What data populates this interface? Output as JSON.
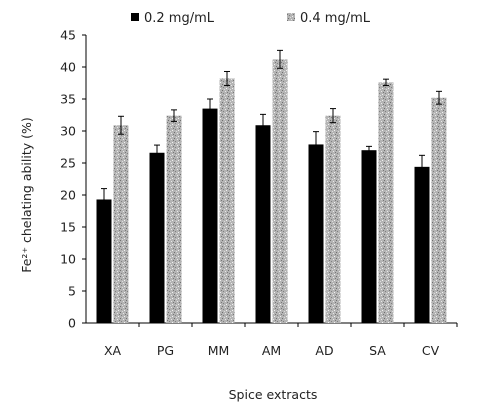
{
  "chart_data": {
    "type": "bar",
    "categories": [
      "XA",
      "PG",
      "MM",
      "AM",
      "AD",
      "SA",
      "CV"
    ],
    "series": [
      {
        "name": "0.2 mg/mL",
        "values": [
          19.3,
          26.6,
          33.5,
          30.9,
          27.9,
          27.0,
          24.4
        ],
        "errors": [
          1.7,
          1.2,
          1.5,
          1.7,
          2.0,
          0.6,
          1.8
        ],
        "color": "#000000"
      },
      {
        "name": "0.4 mg/mL",
        "values": [
          30.9,
          32.4,
          38.2,
          41.2,
          32.4,
          37.6,
          35.2
        ],
        "errors": [
          1.4,
          0.9,
          1.1,
          1.4,
          1.1,
          0.5,
          1.0
        ],
        "color": "#b0b0b0"
      }
    ],
    "xlabel": "Spice extracts",
    "ylabel": "Fe²⁺ chelating ability (%)",
    "ylim": [
      0,
      45
    ],
    "yticks": [
      0,
      5,
      10,
      15,
      20,
      25,
      30,
      35,
      40,
      45
    ],
    "grid": false,
    "legend_position": "top"
  }
}
